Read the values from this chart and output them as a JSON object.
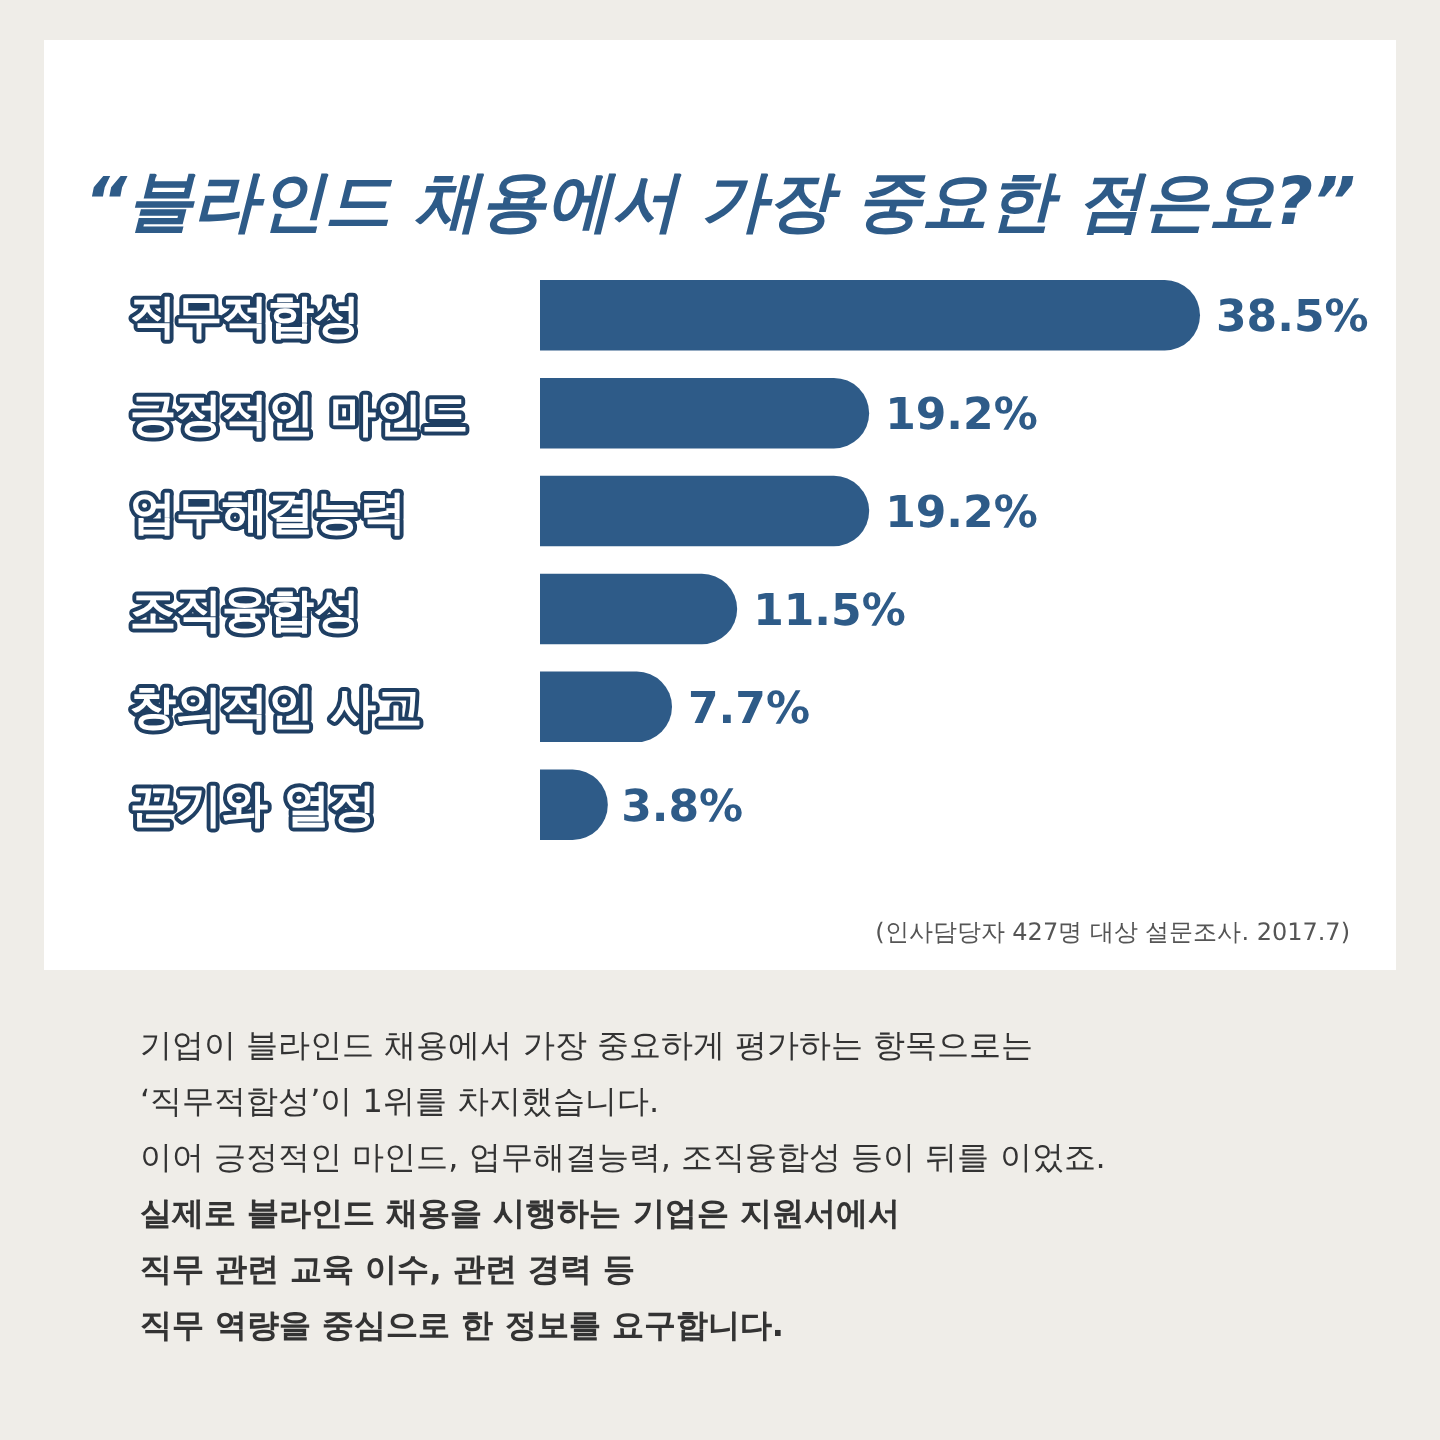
{
  "chart_data": {
    "type": "bar",
    "orientation": "horizontal",
    "title": "“블라인드 채용에서 가장 중요한 점은요?”",
    "categories": [
      "직무적합성",
      "긍정적인 마인드",
      "업무해결능력",
      "조직융합성",
      "창의적인 사고",
      "끈기와 열정"
    ],
    "values": [
      38.5,
      19.2,
      19.2,
      11.5,
      7.7,
      3.8
    ],
    "value_labels": [
      "38.5%",
      "19.2%",
      "19.2%",
      "11.5%",
      "7.7%",
      "3.8%"
    ],
    "color": "#2e5b88",
    "annotations": [
      "(인사담당자 427명 대상 설문조사. 2017.7)",
      "기업이 블라인드 채용에서 가장 중요하게 평가하는 항목으로는",
      "‘직무적합성’이 1위를 차지했습니다.",
      "이어 긍정적인 마인드, 업무해결능력, 조직융합성 등이 뒤를 이었죠.",
      "실제로 블라인드 채용을 시행하는 기업은 지원서에서",
      "직무 관련 교육 이수, 관련 경력 등",
      "직무 역량을 중심으로 한 정보를 요구합니다."
    ]
  }
}
